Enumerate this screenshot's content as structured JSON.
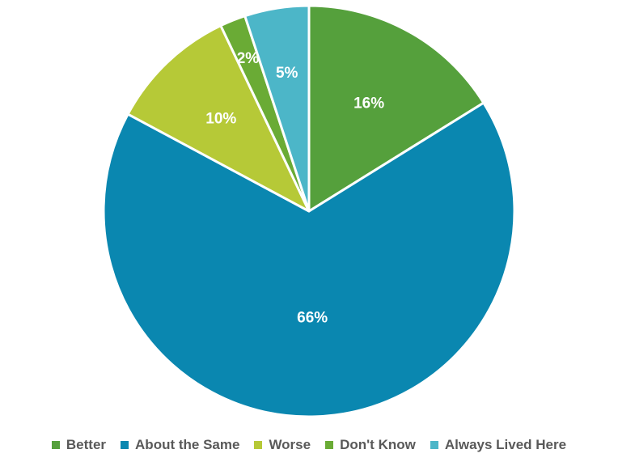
{
  "chart_data": {
    "type": "pie",
    "title": "",
    "categories": [
      "Better",
      "About the Same",
      "Worse",
      "Don't Know",
      "Always Lived Here"
    ],
    "values": [
      16,
      66,
      10,
      2,
      5
    ],
    "labels": [
      "16%",
      "66%",
      "10%",
      "2%",
      "5%"
    ],
    "colors": [
      "#55a03c",
      "#0a87b0",
      "#b6c937",
      "#6aab35",
      "#4cb6c8"
    ],
    "start_angle_deg": 0,
    "direction": "clockwise",
    "legend_position": "bottom"
  }
}
